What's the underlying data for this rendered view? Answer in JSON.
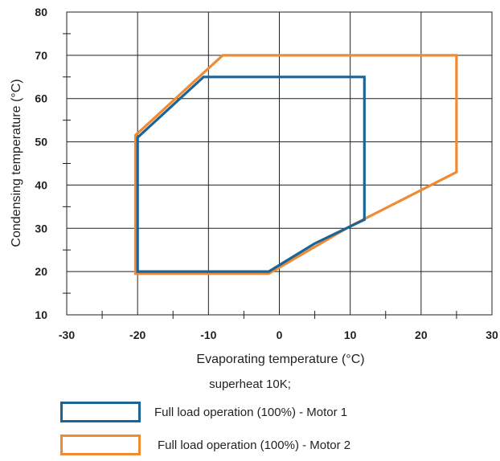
{
  "chart_data": {
    "type": "line",
    "xlabel": "Evaporating temperature (°C)",
    "ylabel": "Condensing temperature (°C)",
    "xlim": [
      -30,
      30
    ],
    "ylim": [
      10,
      80
    ],
    "xticks": [
      -30,
      -20,
      -10,
      0,
      10,
      20,
      30
    ],
    "yticks": [
      10,
      20,
      30,
      40,
      50,
      60,
      70,
      80
    ],
    "grid": true,
    "note": "superheat 10K;",
    "legend_position": "bottom",
    "series": [
      {
        "name": "Full load operation (100%) - Motor 1",
        "color": "#1a6496",
        "closed": true,
        "points": [
          [
            -20,
            20
          ],
          [
            -20,
            51
          ],
          [
            -10.7,
            65
          ],
          [
            12,
            65
          ],
          [
            12,
            32
          ],
          [
            5,
            26.5
          ],
          [
            -1.5,
            20
          ],
          [
            -20,
            20
          ]
        ]
      },
      {
        "name": "Full load operation (100%) - Motor 2",
        "color": "#f08a33",
        "closed": true,
        "points": [
          [
            -20.3,
            19.5
          ],
          [
            -20.3,
            51.5
          ],
          [
            -8,
            70
          ],
          [
            25,
            70
          ],
          [
            25,
            43
          ],
          [
            10,
            30.5
          ],
          [
            -1.5,
            19.5
          ],
          [
            -20.3,
            19.5
          ]
        ]
      }
    ]
  }
}
